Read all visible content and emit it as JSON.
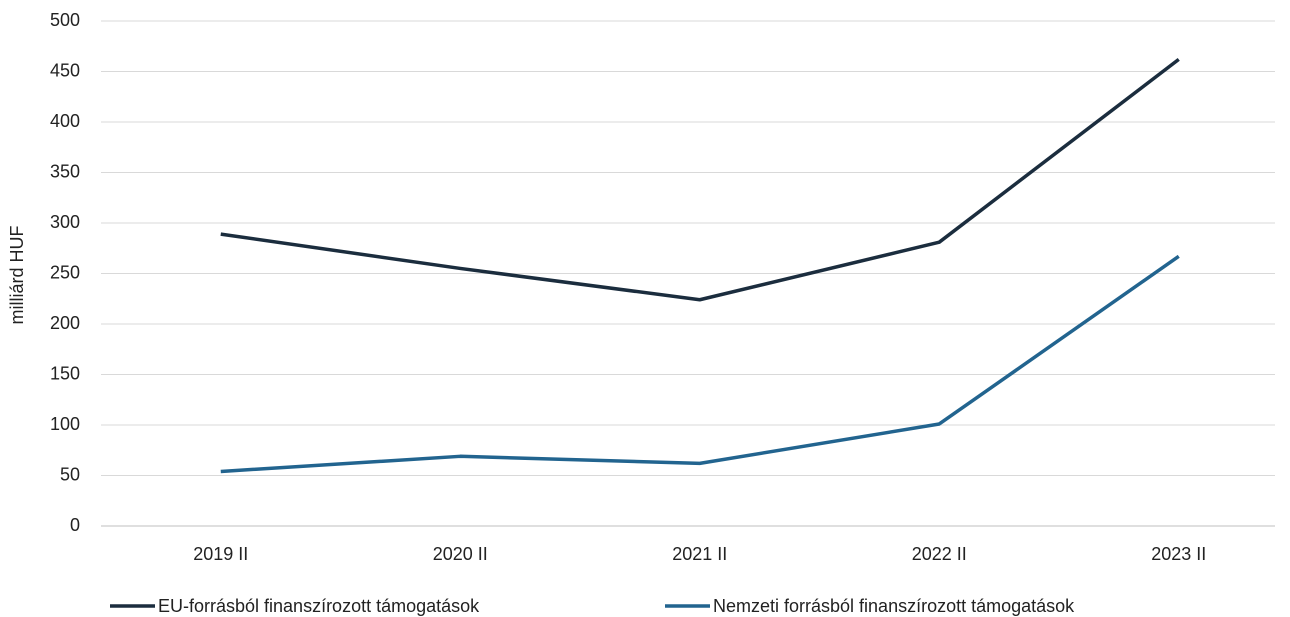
{
  "chart_data": {
    "type": "line",
    "ylabel": "milliárd HUF",
    "categories": [
      "2019 II",
      "2020 II",
      "2021 II",
      "2022 II",
      "2023 II"
    ],
    "series": [
      {
        "name": "EU-forrásból finanszírozott támogatások",
        "color": "#1b2d3e",
        "values": [
          289,
          255,
          224,
          281,
          462
        ]
      },
      {
        "name": "Nemzeti forrásból finanszírozott támogatások",
        "color": "#22648f",
        "values": [
          54,
          69,
          62,
          101,
          267
        ]
      }
    ],
    "ylim": [
      0,
      500
    ],
    "yticks": [
      0,
      50,
      100,
      150,
      200,
      250,
      300,
      350,
      400,
      450,
      500
    ],
    "grid": true,
    "legend": "bottom"
  }
}
